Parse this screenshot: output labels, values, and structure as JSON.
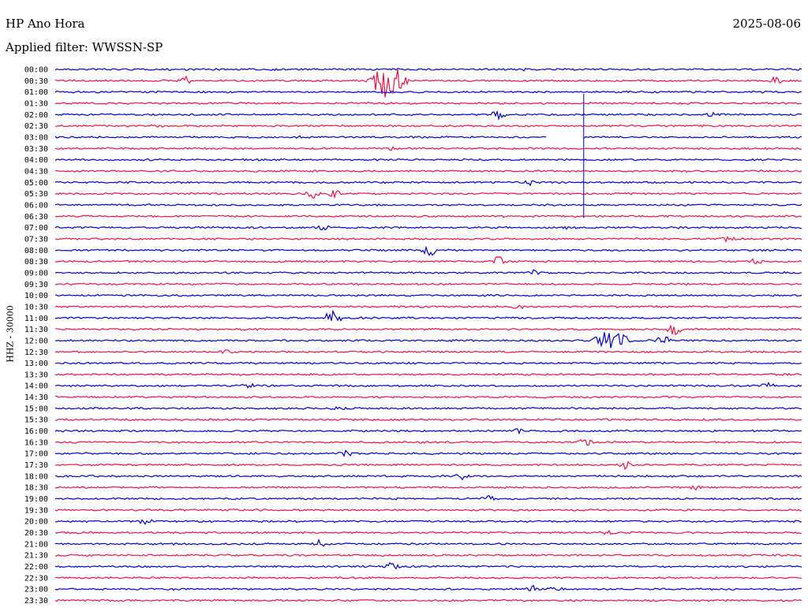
{
  "header": {
    "station": "HP Ano Hora",
    "date": "2025-08-06",
    "filter": "Applied filter: WWSSN-SP",
    "yaxis_label": "HHZ - 30000"
  },
  "colors": {
    "even": "#0000cc",
    "odd": "#ee1144"
  },
  "chart_data": {
    "type": "line",
    "title": "HP Ano Hora",
    "subtitle": "Applied filter: WWSSN-SP",
    "ylabel": "HHZ - 30000",
    "row_labels": [
      "00:00",
      "00:30",
      "01:00",
      "01:30",
      "02:00",
      "02:30",
      "03:00",
      "03:30",
      "04:00",
      "04:30",
      "05:00",
      "05:30",
      "06:00",
      "06:30",
      "07:00",
      "07:30",
      "08:00",
      "08:30",
      "09:00",
      "09:30",
      "10:00",
      "10:30",
      "11:00",
      "11:30",
      "12:00",
      "12:30",
      "13:00",
      "13:30",
      "14:00",
      "14:30",
      "15:00",
      "15:30",
      "16:00",
      "16:30",
      "17:00",
      "17:30",
      "18:00",
      "18:30",
      "19:00",
      "19:30",
      "20:00",
      "20:30",
      "21:00",
      "21:30",
      "22:00",
      "22:30",
      "23:00",
      "23:30"
    ],
    "events": [
      {
        "row": 0,
        "x": 0.07,
        "amp": 0.3
      },
      {
        "row": 0,
        "x": 0.63,
        "amp": 0.4
      },
      {
        "row": 1,
        "x": 0.175,
        "amp": 1.0
      },
      {
        "row": 1,
        "x": 0.445,
        "amp": 5.0,
        "big": true
      },
      {
        "row": 1,
        "x": 0.965,
        "amp": 0.9
      },
      {
        "row": 4,
        "x": 0.595,
        "amp": 2.0
      },
      {
        "row": 4,
        "x": 0.88,
        "amp": 0.4
      },
      {
        "row": 5,
        "x": 0.14,
        "amp": 0.4
      },
      {
        "row": 6,
        "x": 0.325,
        "amp": 0.5
      },
      {
        "row": 7,
        "x": 0.45,
        "amp": 0.4
      },
      {
        "row": 10,
        "x": 0.635,
        "amp": 1.0
      },
      {
        "row": 11,
        "x": 0.345,
        "amp": 1.2
      },
      {
        "row": 11,
        "x": 0.375,
        "amp": 0.9
      },
      {
        "row": 14,
        "x": 0.36,
        "amp": 0.7
      },
      {
        "row": 14,
        "x": 0.69,
        "amp": 0.5
      },
      {
        "row": 15,
        "x": 0.9,
        "amp": 0.6
      },
      {
        "row": 16,
        "x": 0.5,
        "amp": 2.3
      },
      {
        "row": 17,
        "x": 0.595,
        "amp": 1.6
      },
      {
        "row": 17,
        "x": 0.94,
        "amp": 0.8
      },
      {
        "row": 18,
        "x": 0.64,
        "amp": 0.7
      },
      {
        "row": 21,
        "x": 0.62,
        "amp": 0.6
      },
      {
        "row": 22,
        "x": 0.365,
        "amp": 1.3
      },
      {
        "row": 22,
        "x": 0.375,
        "amp": 1.5
      },
      {
        "row": 23,
        "x": 0.83,
        "amp": 1.6
      },
      {
        "row": 24,
        "x": 0.745,
        "amp": 3.0,
        "big": true
      },
      {
        "row": 24,
        "x": 0.815,
        "amp": 1.4
      },
      {
        "row": 25,
        "x": 0.23,
        "amp": 0.4
      },
      {
        "row": 28,
        "x": 0.26,
        "amp": 0.4
      },
      {
        "row": 28,
        "x": 0.955,
        "amp": 0.7
      },
      {
        "row": 30,
        "x": 0.38,
        "amp": 0.5
      },
      {
        "row": 32,
        "x": 0.62,
        "amp": 0.6
      },
      {
        "row": 33,
        "x": 0.71,
        "amp": 0.9
      },
      {
        "row": 34,
        "x": 0.39,
        "amp": 0.7
      },
      {
        "row": 35,
        "x": 0.765,
        "amp": 1.2
      },
      {
        "row": 36,
        "x": 0.545,
        "amp": 0.8
      },
      {
        "row": 37,
        "x": 0.855,
        "amp": 0.5
      },
      {
        "row": 38,
        "x": 0.58,
        "amp": 0.7
      },
      {
        "row": 40,
        "x": 0.12,
        "amp": 0.9
      },
      {
        "row": 41,
        "x": 0.74,
        "amp": 0.7
      },
      {
        "row": 42,
        "x": 0.355,
        "amp": 1.0
      },
      {
        "row": 44,
        "x": 0.45,
        "amp": 1.0
      },
      {
        "row": 46,
        "x": 0.64,
        "amp": 1.2
      },
      {
        "row": 46,
        "x": 0.67,
        "amp": 0.8
      }
    ],
    "gap": {
      "row": 6,
      "from": 0.658,
      "to": 0.708
    },
    "spike": {
      "row": 3,
      "x": 0.708,
      "rows": 10
    }
  }
}
